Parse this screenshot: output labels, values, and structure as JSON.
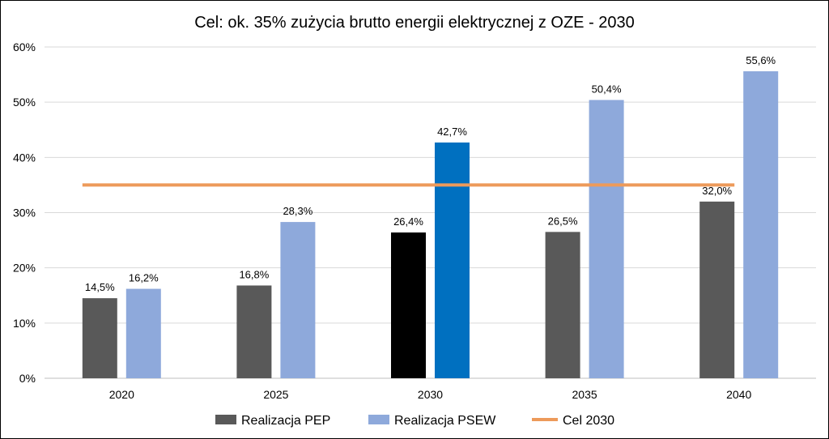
{
  "chart_data": {
    "type": "bar",
    "title": "Cel: ok. 35% zużycia brutto energii elektrycznej z OZE - 2030",
    "categories": [
      "2020",
      "2025",
      "2030",
      "2035",
      "2040"
    ],
    "ylim": [
      0,
      60
    ],
    "yticks": [
      "0%",
      "10%",
      "20%",
      "30%",
      "40%",
      "50%",
      "60%"
    ],
    "ytick_values": [
      0,
      10,
      20,
      30,
      40,
      50,
      60
    ],
    "grid": true,
    "legend_position": "bottom",
    "series": [
      {
        "name": "Realizacja PEP",
        "color": "#595959",
        "values": [
          14.5,
          16.8,
          26.4,
          26.5,
          32.0
        ],
        "labels": [
          "14,5%",
          "16,8%",
          "26,4%",
          "26,5%",
          "32,0%"
        ],
        "highlight": {
          "index": 2,
          "color": "#000000"
        }
      },
      {
        "name": "Realizacja PSEW",
        "color": "#8EA9DB",
        "values": [
          16.2,
          28.3,
          42.7,
          50.4,
          55.6
        ],
        "labels": [
          "16,2%",
          "28,3%",
          "42,7%",
          "50,4%",
          "55,6%"
        ],
        "highlight": {
          "index": 2,
          "color": "#0070C0"
        }
      }
    ],
    "target_line": {
      "name": "Cel 2030",
      "value": 35,
      "color": "#ED9A5A"
    }
  }
}
